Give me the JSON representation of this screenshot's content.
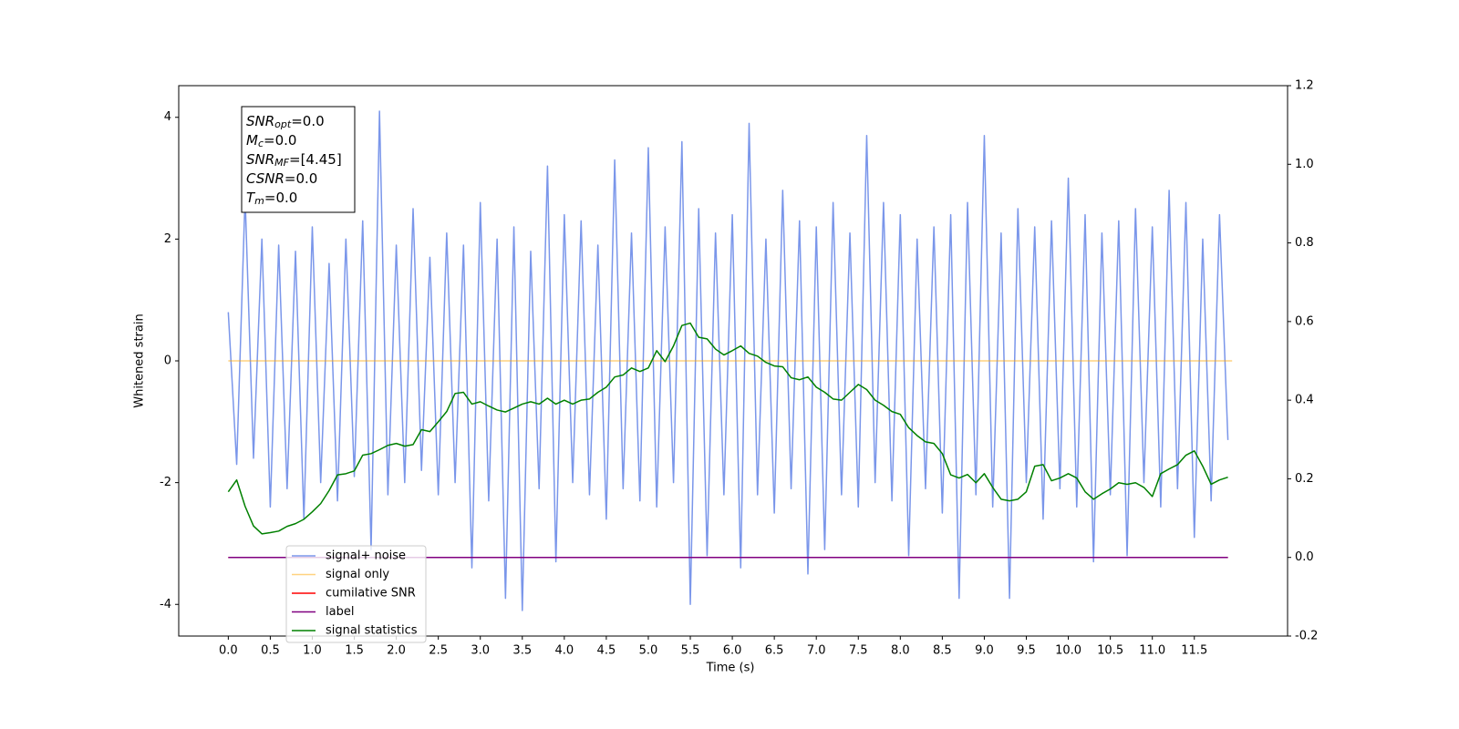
{
  "chart_data": {
    "type": "line",
    "xlabel": "Time (s)",
    "ylabel": "Whitened strain",
    "xlim": [
      -0.59,
      12.61
    ],
    "ylim": [
      -4.52,
      4.52
    ],
    "y2lim": [
      -0.2,
      1.2
    ],
    "xticks": [
      {
        "value": 0,
        "label": "0.0"
      },
      {
        "value": 0.5,
        "label": "0.5"
      },
      {
        "value": 1,
        "label": "1.0"
      },
      {
        "value": 1.5,
        "label": "1.5"
      },
      {
        "value": 2,
        "label": "2.0"
      },
      {
        "value": 2.5,
        "label": "2.5"
      },
      {
        "value": 3,
        "label": "3.0"
      },
      {
        "value": 3.5,
        "label": "3.5"
      },
      {
        "value": 4,
        "label": "4.0"
      },
      {
        "value": 4.5,
        "label": "4.5"
      },
      {
        "value": 5,
        "label": "5.0"
      },
      {
        "value": 5.5,
        "label": "5.5"
      },
      {
        "value": 6,
        "label": "6.0"
      },
      {
        "value": 6.5,
        "label": "6.5"
      },
      {
        "value": 7,
        "label": "7.0"
      },
      {
        "value": 7.5,
        "label": "7.5"
      },
      {
        "value": 8,
        "label": "8.0"
      },
      {
        "value": 8.5,
        "label": "8.5"
      },
      {
        "value": 9,
        "label": "9.0"
      },
      {
        "value": 9.5,
        "label": "9.5"
      },
      {
        "value": 10,
        "label": "10.0"
      },
      {
        "value": 10.5,
        "label": "10.5"
      },
      {
        "value": 11,
        "label": "11.0"
      },
      {
        "value": 11.5,
        "label": "11.5"
      }
    ],
    "yticks": [
      -4,
      -2,
      0,
      2,
      4
    ],
    "y2ticks": [
      {
        "value": -0.2,
        "label": "-0.2"
      },
      {
        "value": 0,
        "label": "0.0"
      },
      {
        "value": 0.2,
        "label": "0.2"
      },
      {
        "value": 0.4,
        "label": "0.4"
      },
      {
        "value": 0.6,
        "label": "0.6"
      },
      {
        "value": 0.8,
        "label": "0.8"
      },
      {
        "value": 1,
        "label": "1.0"
      },
      {
        "value": 1.2,
        "label": "1.2"
      }
    ],
    "legend": "lower left",
    "annotation": [
      {
        "base": "SNR",
        "sub": "opt",
        "rest": "=0.0"
      },
      {
        "base": "M",
        "sub": "c",
        "rest": "=0.0"
      },
      {
        "base": "SNR",
        "sub": "MF",
        "rest": "=[4.45]"
      },
      {
        "base": "CSNR",
        "sub": "",
        "rest": "=0.0"
      },
      {
        "base": "T",
        "sub": "m",
        "rest": "=0.0"
      }
    ],
    "x": [
      0,
      0.1,
      0.2,
      0.3,
      0.4,
      0.5,
      0.6,
      0.7,
      0.8,
      0.9,
      1,
      1.1,
      1.2,
      1.3,
      1.4,
      1.5,
      1.6,
      1.7,
      1.8,
      1.9,
      2,
      2.1,
      2.2,
      2.3,
      2.4,
      2.5,
      2.6,
      2.7,
      2.8,
      2.9,
      3,
      3.1,
      3.2,
      3.3,
      3.4,
      3.5,
      3.6,
      3.7,
      3.8,
      3.9,
      4,
      4.1,
      4.2,
      4.3,
      4.4,
      4.5,
      4.6,
      4.7,
      4.8,
      4.9,
      5,
      5.1,
      5.2,
      5.3,
      5.4,
      5.5,
      5.6,
      5.7,
      5.8,
      5.9,
      6,
      6.1,
      6.2,
      6.3,
      6.4,
      6.5,
      6.6,
      6.7,
      6.8,
      6.9,
      7,
      7.1,
      7.2,
      7.3,
      7.4,
      7.5,
      7.6,
      7.7,
      7.8,
      7.9,
      8,
      8.1,
      8.2,
      8.3,
      8.4,
      8.5,
      8.6,
      8.7,
      8.8,
      8.9,
      9,
      9.1,
      9.2,
      9.3,
      9.4,
      9.5,
      9.6,
      9.7,
      9.8,
      9.9,
      10,
      10.1,
      10.2,
      10.3,
      10.4,
      10.5,
      10.6,
      10.7,
      10.8,
      10.9,
      11,
      11.1,
      11.2,
      11.3,
      11.4,
      11.5,
      11.6,
      11.7,
      11.8,
      11.9
    ],
    "series": [
      {
        "name": "signal+ noise",
        "color": "#4169e1",
        "opacity": 0.7,
        "values": [
          0.8,
          -1.7,
          2.7,
          -1.6,
          2.0,
          -2.4,
          1.9,
          -2.1,
          1.8,
          -2.6,
          2.2,
          -2.0,
          1.6,
          -2.3,
          2.0,
          -1.9,
          2.3,
          -3.1,
          4.1,
          -2.2,
          1.9,
          -2.0,
          2.5,
          -1.8,
          1.7,
          -2.2,
          2.1,
          -2.0,
          1.9,
          -3.4,
          2.6,
          -2.3,
          2.0,
          -3.9,
          2.2,
          -4.1,
          1.8,
          -2.1,
          3.2,
          -3.3,
          2.4,
          -2.0,
          2.3,
          -2.2,
          1.9,
          -2.6,
          3.3,
          -2.1,
          2.1,
          -2.3,
          3.5,
          -2.4,
          2.2,
          -2.0,
          3.6,
          -4.0,
          2.5,
          -3.2,
          2.1,
          -2.2,
          2.4,
          -3.4,
          3.9,
          -2.2,
          2.0,
          -2.5,
          2.8,
          -2.1,
          2.3,
          -3.5,
          2.2,
          -3.1,
          2.6,
          -2.2,
          2.1,
          -2.4,
          3.7,
          -2.0,
          2.6,
          -2.3,
          2.4,
          -3.2,
          2.0,
          -2.1,
          2.2,
          -2.5,
          2.4,
          -3.9,
          2.6,
          -2.2,
          3.7,
          -2.4,
          2.1,
          -3.9,
          2.5,
          -2.0,
          2.2,
          -2.6,
          2.3,
          -2.1,
          3.0,
          -2.4,
          2.4,
          -3.3,
          2.1,
          -2.2,
          2.3,
          -3.2,
          2.5,
          -2.0,
          2.2,
          -2.4,
          2.8,
          -2.1,
          2.6,
          -2.9,
          2.0,
          -2.3,
          2.4,
          -1.3
        ]
      },
      {
        "name": "signal only",
        "color": "#ffa500",
        "opacity": 0.5,
        "x": [
          0,
          11.95
        ],
        "values": [
          0,
          0
        ]
      },
      {
        "name": "cumilative SNR",
        "color": "#ff0000",
        "axis": "y2",
        "x": [
          0,
          11.9
        ],
        "values": [
          0,
          0
        ]
      },
      {
        "name": "label",
        "color": "#800080",
        "axis": "y2",
        "x": [
          0,
          11.9
        ],
        "values": [
          0,
          0
        ]
      },
      {
        "name": "signal statistics",
        "color": "#008000",
        "axis": "y2",
        "values": [
          0.167,
          0.197,
          0.13,
          0.08,
          0.06,
          0.063,
          0.067,
          0.079,
          0.086,
          0.097,
          0.116,
          0.137,
          0.17,
          0.21,
          0.213,
          0.22,
          0.26,
          0.264,
          0.274,
          0.285,
          0.29,
          0.283,
          0.287,
          0.325,
          0.32,
          0.345,
          0.371,
          0.417,
          0.42,
          0.39,
          0.396,
          0.385,
          0.375,
          0.37,
          0.38,
          0.39,
          0.396,
          0.39,
          0.405,
          0.39,
          0.4,
          0.39,
          0.4,
          0.403,
          0.42,
          0.433,
          0.459,
          0.464,
          0.482,
          0.473,
          0.482,
          0.526,
          0.498,
          0.538,
          0.59,
          0.596,
          0.56,
          0.556,
          0.53,
          0.515,
          0.526,
          0.538,
          0.519,
          0.512,
          0.496,
          0.487,
          0.485,
          0.457,
          0.452,
          0.459,
          0.433,
          0.42,
          0.403,
          0.4,
          0.42,
          0.44,
          0.427,
          0.4,
          0.387,
          0.371,
          0.364,
          0.33,
          0.31,
          0.294,
          0.29,
          0.264,
          0.21,
          0.202,
          0.211,
          0.19,
          0.213,
          0.178,
          0.148,
          0.144,
          0.148,
          0.167,
          0.232,
          0.236,
          0.195,
          0.202,
          0.213,
          0.202,
          0.167,
          0.148,
          0.162,
          0.174,
          0.19,
          0.186,
          0.19,
          0.178,
          0.155,
          0.213,
          0.225,
          0.236,
          0.26,
          0.271,
          0.232,
          0.186,
          0.197,
          0.204
        ]
      }
    ]
  }
}
